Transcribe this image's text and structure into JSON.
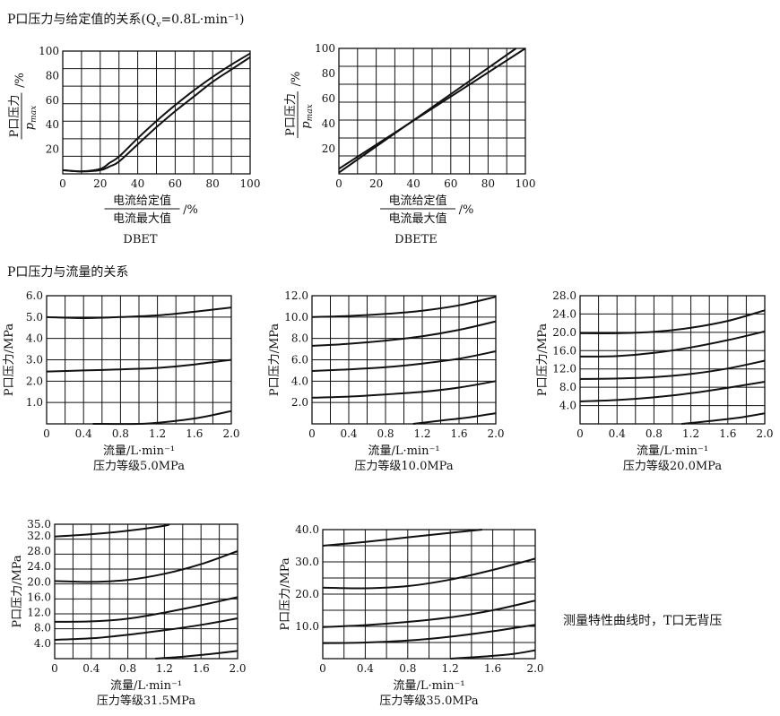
{
  "sections": {
    "top_title": "P口压力与给定值的关系(Q",
    "top_title_sub": "v",
    "top_title_tail": "=0.8L·min⁻¹)",
    "mid_title": "P口压力与流量的关系",
    "note": "测量特性曲线时，T口无背压"
  },
  "chart_data": [
    {
      "type": "line",
      "title": "DBET",
      "ylabel_num": "P口压力",
      "ylabel_den": "p",
      "ylabel_den_sub": "max",
      "ylabel_unit": "/%",
      "xlabel_num": "电流给定值",
      "xlabel_den": "电流最大值",
      "xlabel_unit": "/%",
      "xlim": [
        0,
        100
      ],
      "ylim": [
        0,
        100
      ],
      "xticks": [
        "0",
        "20",
        "40",
        "60",
        "80",
        "100"
      ],
      "yticks": [
        "20",
        "40",
        "60",
        "80",
        "100"
      ],
      "grid": true,
      "series": [
        {
          "x": [
            0,
            10,
            20,
            25,
            30,
            40,
            50,
            60,
            70,
            80,
            90,
            100
          ],
          "y": [
            3,
            2,
            3,
            6,
            10,
            24,
            38,
            51,
            63,
            75,
            85,
            95
          ]
        },
        {
          "x": [
            0,
            10,
            20,
            25,
            30,
            40,
            50,
            60,
            70,
            80,
            90,
            100
          ],
          "y": [
            3,
            2,
            4,
            9,
            14,
            29,
            43,
            56,
            68,
            79,
            89,
            98
          ]
        }
      ]
    },
    {
      "type": "line",
      "title": "DBETE",
      "ylabel_num": "P口压力",
      "ylabel_den": "p",
      "ylabel_den_sub": "max",
      "ylabel_unit": "/%",
      "xlabel_num": "电流给定值",
      "xlabel_den": "电流最大值",
      "xlabel_unit": "/%",
      "xlim": [
        0,
        100
      ],
      "ylim": [
        0,
        100
      ],
      "xticks": [
        "0",
        "20",
        "40",
        "60",
        "80",
        "100"
      ],
      "yticks": [
        "20",
        "40",
        "60",
        "80",
        "100"
      ],
      "grid": true,
      "series": [
        {
          "x": [
            0,
            95
          ],
          "y": [
            1,
            100
          ]
        },
        {
          "x": [
            0,
            100
          ],
          "y": [
            4,
            100
          ]
        }
      ]
    },
    {
      "type": "line",
      "title": "压力等级5.0MPa",
      "ylabel": "P口压力/MPa",
      "xlabel": "流量/L·min⁻¹",
      "xlim": [
        0,
        2.0
      ],
      "ylim": [
        0,
        6.0
      ],
      "xticks": [
        "0",
        "0.4",
        "0.8",
        "1.2",
        "1.6",
        "2.0"
      ],
      "yticks": [
        "1.0",
        "2.0",
        "3.0",
        "4.0",
        "5.0",
        "6.0"
      ],
      "grid": true,
      "series": [
        {
          "x": [
            0,
            0.4,
            0.8,
            1.2,
            1.6,
            2.0
          ],
          "y": [
            5.0,
            4.95,
            5.0,
            5.08,
            5.25,
            5.45
          ]
        },
        {
          "x": [
            0,
            0.4,
            0.8,
            1.2,
            1.6,
            2.0
          ],
          "y": [
            2.45,
            2.5,
            2.55,
            2.62,
            2.78,
            3.0
          ]
        },
        {
          "x": [
            0.5,
            1.0,
            1.2,
            1.6,
            2.0
          ],
          "y": [
            0,
            0,
            0.05,
            0.25,
            0.6
          ]
        }
      ]
    },
    {
      "type": "line",
      "title": "压力等级10.0MPa",
      "ylabel": "P口压力/MPa",
      "xlabel": "流量/L·min⁻¹",
      "xlim": [
        0,
        2.0
      ],
      "ylim": [
        0,
        12.0
      ],
      "xticks": [
        "0",
        "0.4",
        "0.8",
        "1.2",
        "1.6",
        "2.0"
      ],
      "yticks": [
        "2.0",
        "4.0",
        "6.0",
        "8.0",
        "10.0",
        "12.0"
      ],
      "grid": true,
      "series": [
        {
          "x": [
            0,
            0.4,
            0.8,
            1.2,
            1.6,
            2.0
          ],
          "y": [
            10.0,
            10.1,
            10.3,
            10.6,
            11.1,
            11.9
          ]
        },
        {
          "x": [
            0,
            0.4,
            0.8,
            1.2,
            1.6,
            2.0
          ],
          "y": [
            7.3,
            7.5,
            7.8,
            8.2,
            8.8,
            9.6
          ]
        },
        {
          "x": [
            0,
            0.4,
            0.8,
            1.2,
            1.6,
            2.0
          ],
          "y": [
            4.95,
            5.1,
            5.3,
            5.65,
            6.1,
            6.8
          ]
        },
        {
          "x": [
            0,
            0.4,
            0.8,
            1.2,
            1.6,
            2.0
          ],
          "y": [
            2.45,
            2.55,
            2.75,
            3.0,
            3.4,
            4.0
          ]
        },
        {
          "x": [
            1.1,
            1.4,
            1.7,
            2.0
          ],
          "y": [
            0,
            0.3,
            0.6,
            1.0
          ]
        }
      ]
    },
    {
      "type": "line",
      "title": "压力等级20.0MPa",
      "ylabel": "P口压力/MPa",
      "xlabel": "流量/L·min⁻¹",
      "xlim": [
        0,
        2.0
      ],
      "ylim": [
        0,
        28.0
      ],
      "xticks": [
        "0",
        "0.4",
        "0.8",
        "1.2",
        "1.6",
        "2.0"
      ],
      "yticks": [
        "4.0",
        "8.0",
        "12.0",
        "16.0",
        "20.0",
        "24.0",
        "28.0"
      ],
      "grid": true,
      "series": [
        {
          "x": [
            0,
            0.4,
            0.8,
            1.2,
            1.6,
            2.0
          ],
          "y": [
            19.8,
            19.8,
            20.1,
            21.0,
            22.5,
            24.8
          ]
        },
        {
          "x": [
            0,
            0.4,
            0.8,
            1.2,
            1.6,
            2.0
          ],
          "y": [
            14.7,
            14.8,
            15.5,
            16.7,
            18.3,
            20.2
          ]
        },
        {
          "x": [
            0,
            0.4,
            0.8,
            1.2,
            1.6,
            2.0
          ],
          "y": [
            9.8,
            9.9,
            10.2,
            10.9,
            12.1,
            13.8
          ]
        },
        {
          "x": [
            0,
            0.4,
            0.8,
            1.2,
            1.6,
            2.0
          ],
          "y": [
            4.9,
            5.2,
            5.8,
            6.7,
            7.9,
            9.2
          ]
        },
        {
          "x": [
            1.1,
            1.4,
            1.7,
            2.0
          ],
          "y": [
            0,
            0.6,
            1.3,
            2.3
          ]
        }
      ]
    },
    {
      "type": "line",
      "title": "压力等级31.5MPa",
      "ylabel": "P口压力/MPa",
      "xlabel": "流量/L·min⁻¹",
      "xlim": [
        0,
        2.0
      ],
      "ylim": [
        0,
        35.0
      ],
      "xticks": [
        "0",
        "0.4",
        "0.8",
        "1.2",
        "1.6",
        "2.0"
      ],
      "yticks": [
        "4.0",
        "8.0",
        "12.0",
        "16.0",
        "20.0",
        "24.0",
        "28.0",
        "32.0",
        "35.0"
      ],
      "grid": true,
      "series": [
        {
          "x": [
            0,
            0.4,
            0.8,
            1.2,
            1.25
          ],
          "y": [
            31.8,
            32.4,
            33.3,
            34.6,
            35.0
          ]
        },
        {
          "x": [
            0,
            0.4,
            0.8,
            1.2,
            1.6,
            2.0
          ],
          "y": [
            20.2,
            20.0,
            20.5,
            22.1,
            24.6,
            28.0
          ]
        },
        {
          "x": [
            0,
            0.4,
            0.8,
            1.2,
            1.6,
            2.0
          ],
          "y": [
            9.6,
            9.7,
            10.4,
            12.0,
            13.9,
            16.0
          ]
        },
        {
          "x": [
            0,
            0.4,
            0.8,
            1.2,
            1.6,
            2.0
          ],
          "y": [
            4.9,
            5.3,
            6.2,
            7.4,
            8.8,
            10.5
          ]
        },
        {
          "x": [
            1.1,
            1.4,
            1.7,
            2.0
          ],
          "y": [
            0,
            0.5,
            1.2,
            2.0
          ]
        }
      ]
    },
    {
      "type": "line",
      "title": "压力等级35.0MPa",
      "ylabel": "P口压力/MPa",
      "xlabel": "流量/L·min⁻¹",
      "xlim": [
        0,
        2.0
      ],
      "ylim": [
        0,
        40.0
      ],
      "xticks": [
        "0",
        "0.4",
        "0.8",
        "1.2",
        "1.6",
        "2.0"
      ],
      "yticks": [
        "10.0",
        "20.0",
        "30.0",
        "40.0"
      ],
      "grid": true,
      "series": [
        {
          "x": [
            0,
            0.4,
            0.8,
            1.2,
            1.5
          ],
          "y": [
            35.0,
            36.2,
            37.6,
            39.0,
            40.0
          ]
        },
        {
          "x": [
            0,
            0.4,
            0.8,
            1.2,
            1.6,
            2.0
          ],
          "y": [
            22.0,
            21.8,
            22.5,
            24.5,
            27.5,
            31.0
          ]
        },
        {
          "x": [
            0,
            0.4,
            0.8,
            1.2,
            1.6,
            2.0
          ],
          "y": [
            9.8,
            10.4,
            11.4,
            12.8,
            15.0,
            18.0
          ]
        },
        {
          "x": [
            0,
            0.4,
            0.8,
            1.2,
            1.6,
            2.0
          ],
          "y": [
            4.8,
            5.0,
            5.6,
            6.8,
            8.5,
            10.5
          ]
        },
        {
          "x": [
            1.2,
            1.5,
            1.8,
            2.0
          ],
          "y": [
            0,
            0.6,
            1.5,
            2.6
          ]
        }
      ]
    }
  ]
}
